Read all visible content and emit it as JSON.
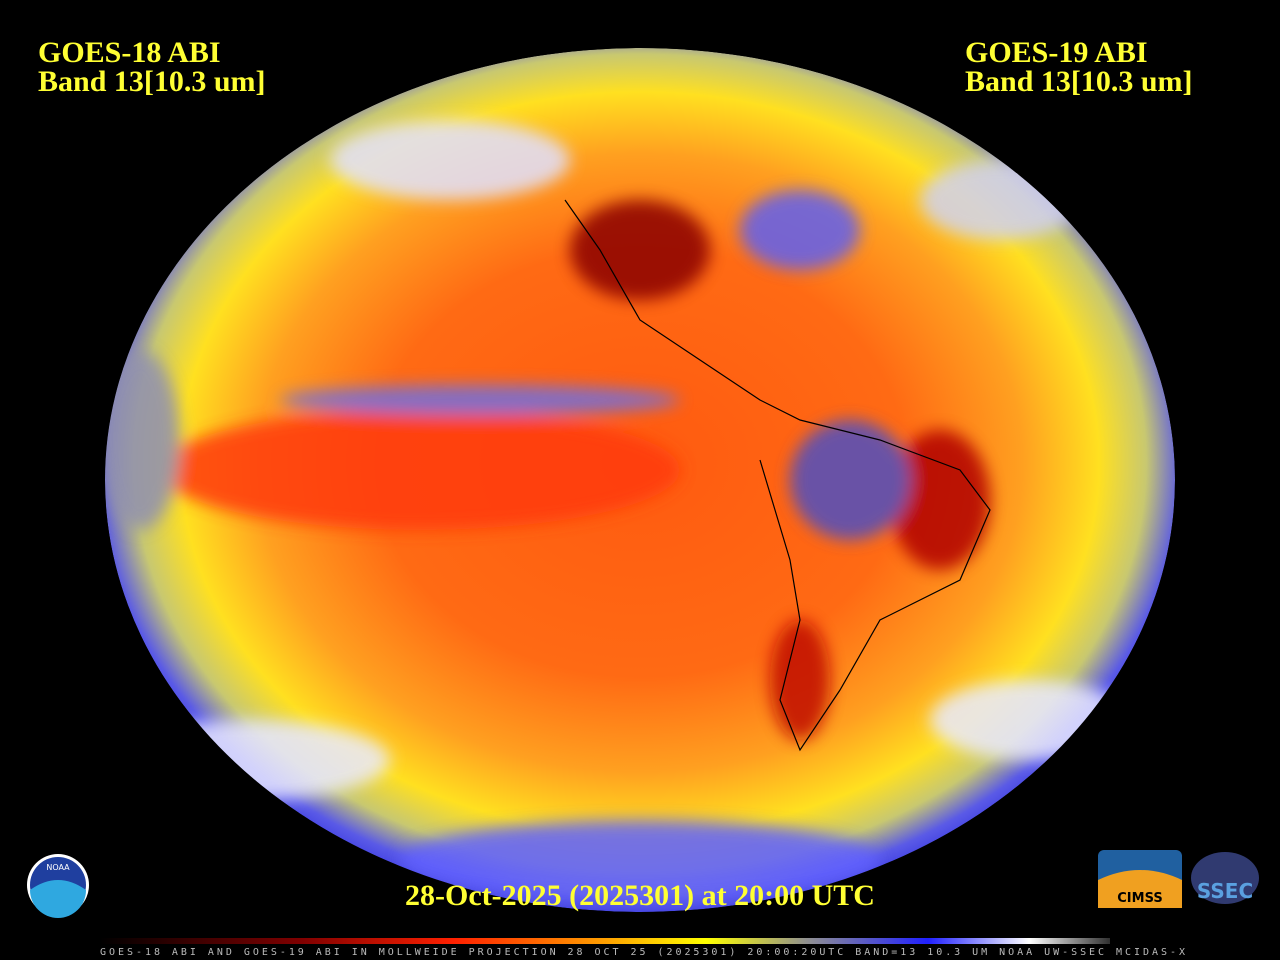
{
  "left_label": {
    "satellite": "GOES-18 ABI",
    "band": "Band 13[10.3 um]"
  },
  "right_label": {
    "satellite": "GOES-19 ABI",
    "band": "Band 13[10.3 um]"
  },
  "timestamp": "28-Oct-2025 (2025301) at 20:00 UTC",
  "footer": "GOES-18 ABI AND GOES-19 ABI IN MOLLWEIDE PROJECTION 28 OCT 25 (2025301) 20:00:20UTC BAND=13 10.3 UM NOAA UW-SSEC MCIDAS-X",
  "logos": {
    "noaa": "NOAA",
    "cimss": "CIMSS",
    "ssec": "SSEC"
  }
}
